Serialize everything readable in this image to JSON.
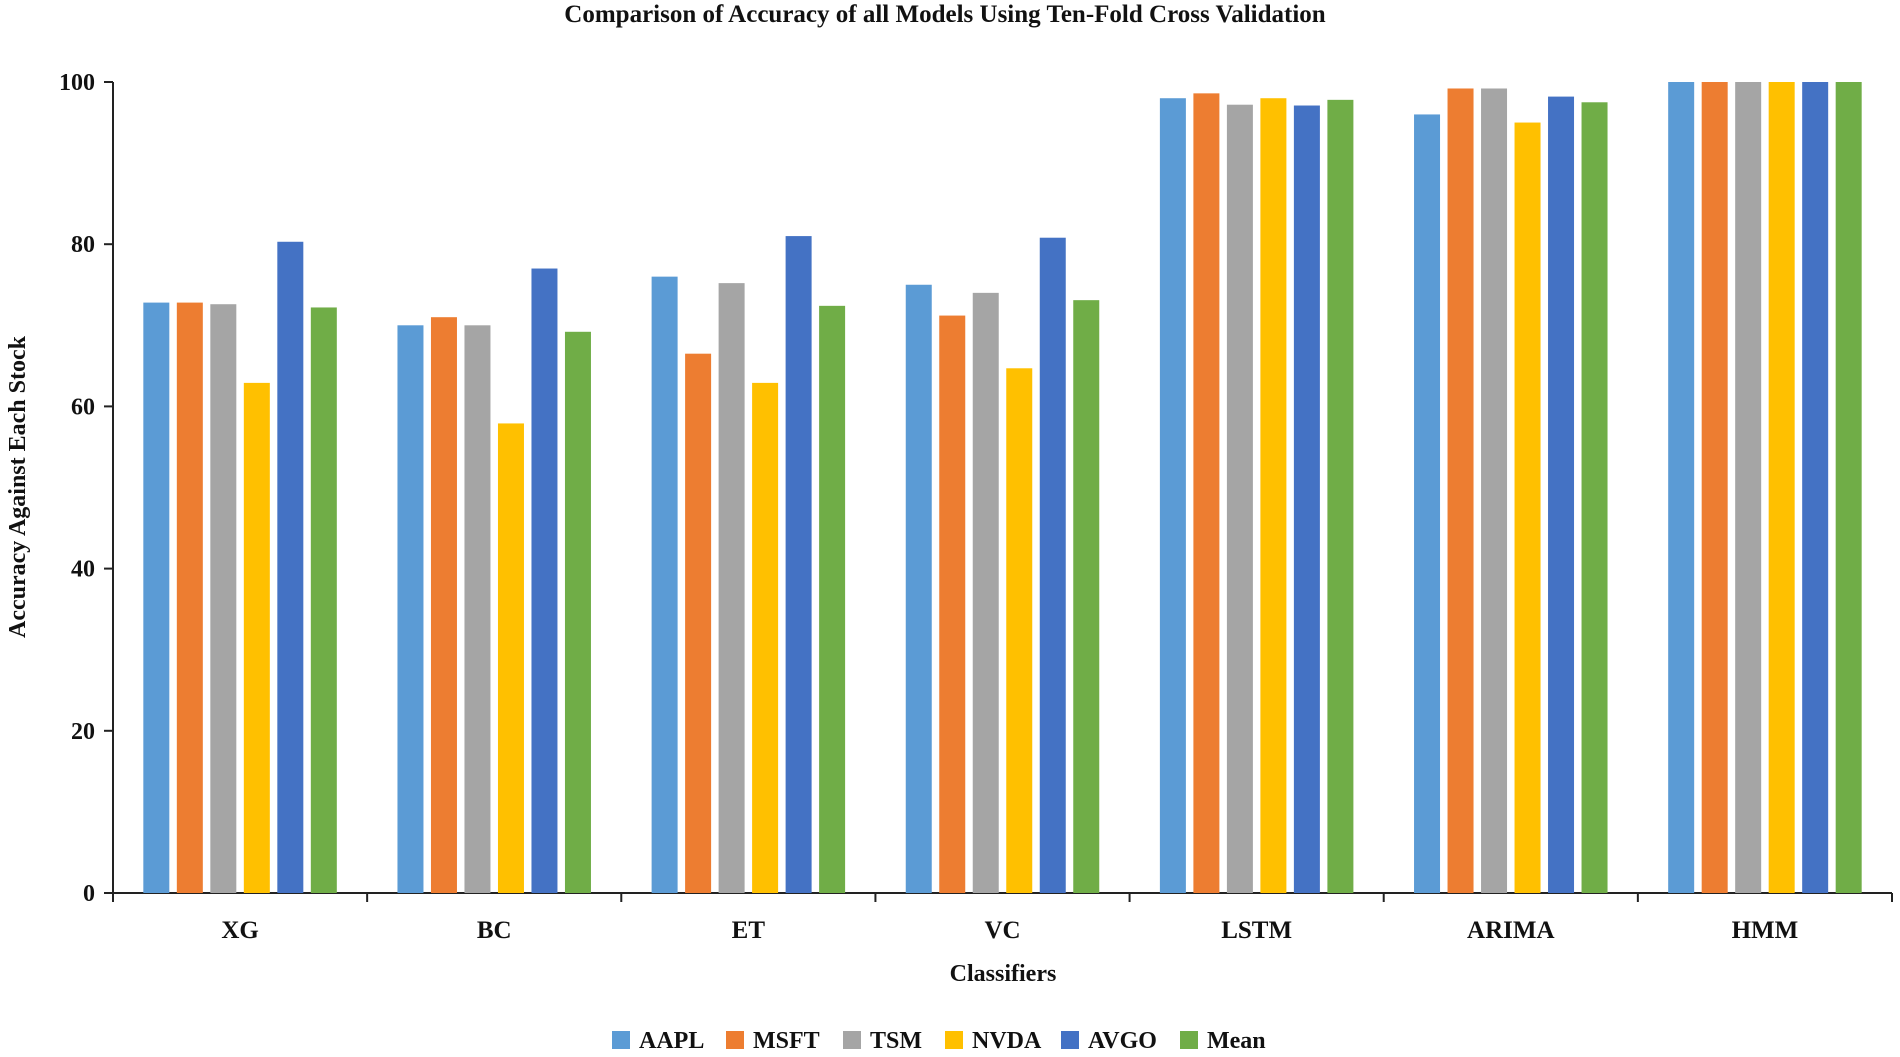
{
  "chart_data": {
    "type": "bar",
    "title": "Comparison of Accuracy of all Models Using  Ten-Fold Cross Validation",
    "xlabel": "Classifiers",
    "ylabel": "Accuracy Against Each Stock",
    "ylim": [
      0,
      100
    ],
    "yticks": [
      "0",
      "20",
      "40",
      "60",
      "80",
      "100"
    ],
    "grid": false,
    "legend_position": "bottom-center",
    "categories": [
      "XG",
      "BC",
      "ET",
      "VC",
      "LSTM",
      "ARIMA",
      "HMM"
    ],
    "series": [
      {
        "name": "AAPL",
        "color": "#5b9bd5",
        "values": [
          72.8,
          70.0,
          76.0,
          75.0,
          98.0,
          96.0,
          100
        ]
      },
      {
        "name": "MSFT",
        "color": "#ed7d31",
        "values": [
          72.8,
          71.0,
          66.5,
          71.2,
          98.6,
          99.2,
          100
        ]
      },
      {
        "name": "TSM",
        "color": "#a5a5a5",
        "values": [
          72.6,
          70.0,
          75.2,
          74.0,
          97.2,
          99.2,
          100
        ]
      },
      {
        "name": "NVDA",
        "color": "#ffc000",
        "values": [
          62.9,
          57.9,
          62.9,
          64.7,
          98.0,
          95.0,
          100
        ]
      },
      {
        "name": "AVGO",
        "color": "#4472c4",
        "values": [
          80.3,
          77.0,
          81.0,
          80.8,
          97.1,
          98.2,
          100
        ]
      },
      {
        "name": "Mean",
        "color": "#70ad47",
        "values": [
          72.2,
          69.2,
          72.4,
          73.1,
          97.8,
          97.5,
          100
        ]
      }
    ]
  }
}
